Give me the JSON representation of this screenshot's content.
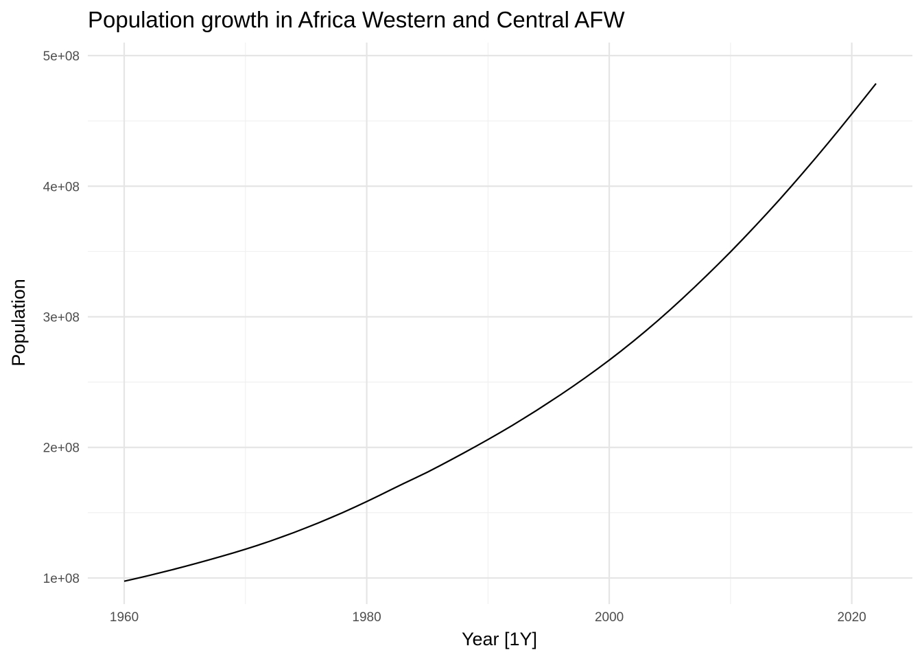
{
  "chart_data": {
    "type": "line",
    "title": "Population growth in Africa Western and Central AFW",
    "xlabel": "Year [1Y]",
    "ylabel": "Population",
    "xlim": [
      1957,
      2025
    ],
    "ylim": [
      80000000,
      510000000
    ],
    "x_ticks": [
      1960,
      1980,
      2000,
      2020
    ],
    "x_tick_labels": [
      "1960",
      "1980",
      "2000",
      "2020"
    ],
    "x_minor_ticks": [
      1970,
      1990,
      2010
    ],
    "y_ticks": [
      100000000,
      200000000,
      300000000,
      400000000,
      500000000
    ],
    "y_tick_labels": [
      "1e+08",
      "2e+08",
      "3e+08",
      "4e+08",
      "5e+08"
    ],
    "y_minor_ticks": [
      150000000,
      250000000,
      350000000,
      450000000
    ],
    "grid": true,
    "legend": "none",
    "line_color": "#000000",
    "series": [
      {
        "x": [
          1960,
          1961,
          1962,
          1963,
          1964,
          1965,
          1966,
          1967,
          1968,
          1969,
          1970,
          1971,
          1972,
          1973,
          1974,
          1975,
          1976,
          1977,
          1978,
          1979,
          1980,
          1981,
          1982,
          1983,
          1984,
          1985,
          1986,
          1987,
          1988,
          1989,
          1990,
          1991,
          1992,
          1993,
          1994,
          1995,
          1996,
          1997,
          1998,
          1999,
          2000,
          2001,
          2002,
          2003,
          2004,
          2005,
          2006,
          2007,
          2008,
          2009,
          2010,
          2011,
          2012,
          2013,
          2014,
          2015,
          2016,
          2017,
          2018,
          2019,
          2020,
          2021,
          2022
        ],
        "values": [
          97500000,
          99600000,
          101800000,
          104100000,
          106400000,
          108800000,
          111300000,
          113900000,
          116500000,
          119200000,
          122000000,
          125000000,
          128100000,
          131400000,
          134800000,
          138400000,
          142100000,
          146000000,
          150000000,
          154200000,
          158500000,
          163000000,
          167600000,
          172100000,
          176500000,
          181000000,
          185800000,
          190700000,
          195700000,
          200800000,
          206000000,
          211300000,
          216800000,
          222500000,
          228300000,
          234300000,
          240400000,
          246700000,
          253200000,
          259900000,
          266800000,
          274000000,
          281400000,
          289100000,
          297000000,
          305200000,
          313700000,
          322400000,
          331300000,
          340400000,
          349700000,
          359300000,
          369100000,
          379100000,
          389300000,
          399800000,
          410500000,
          421400000,
          432500000,
          443800000,
          455300000,
          466900000,
          478600000
        ]
      }
    ]
  }
}
